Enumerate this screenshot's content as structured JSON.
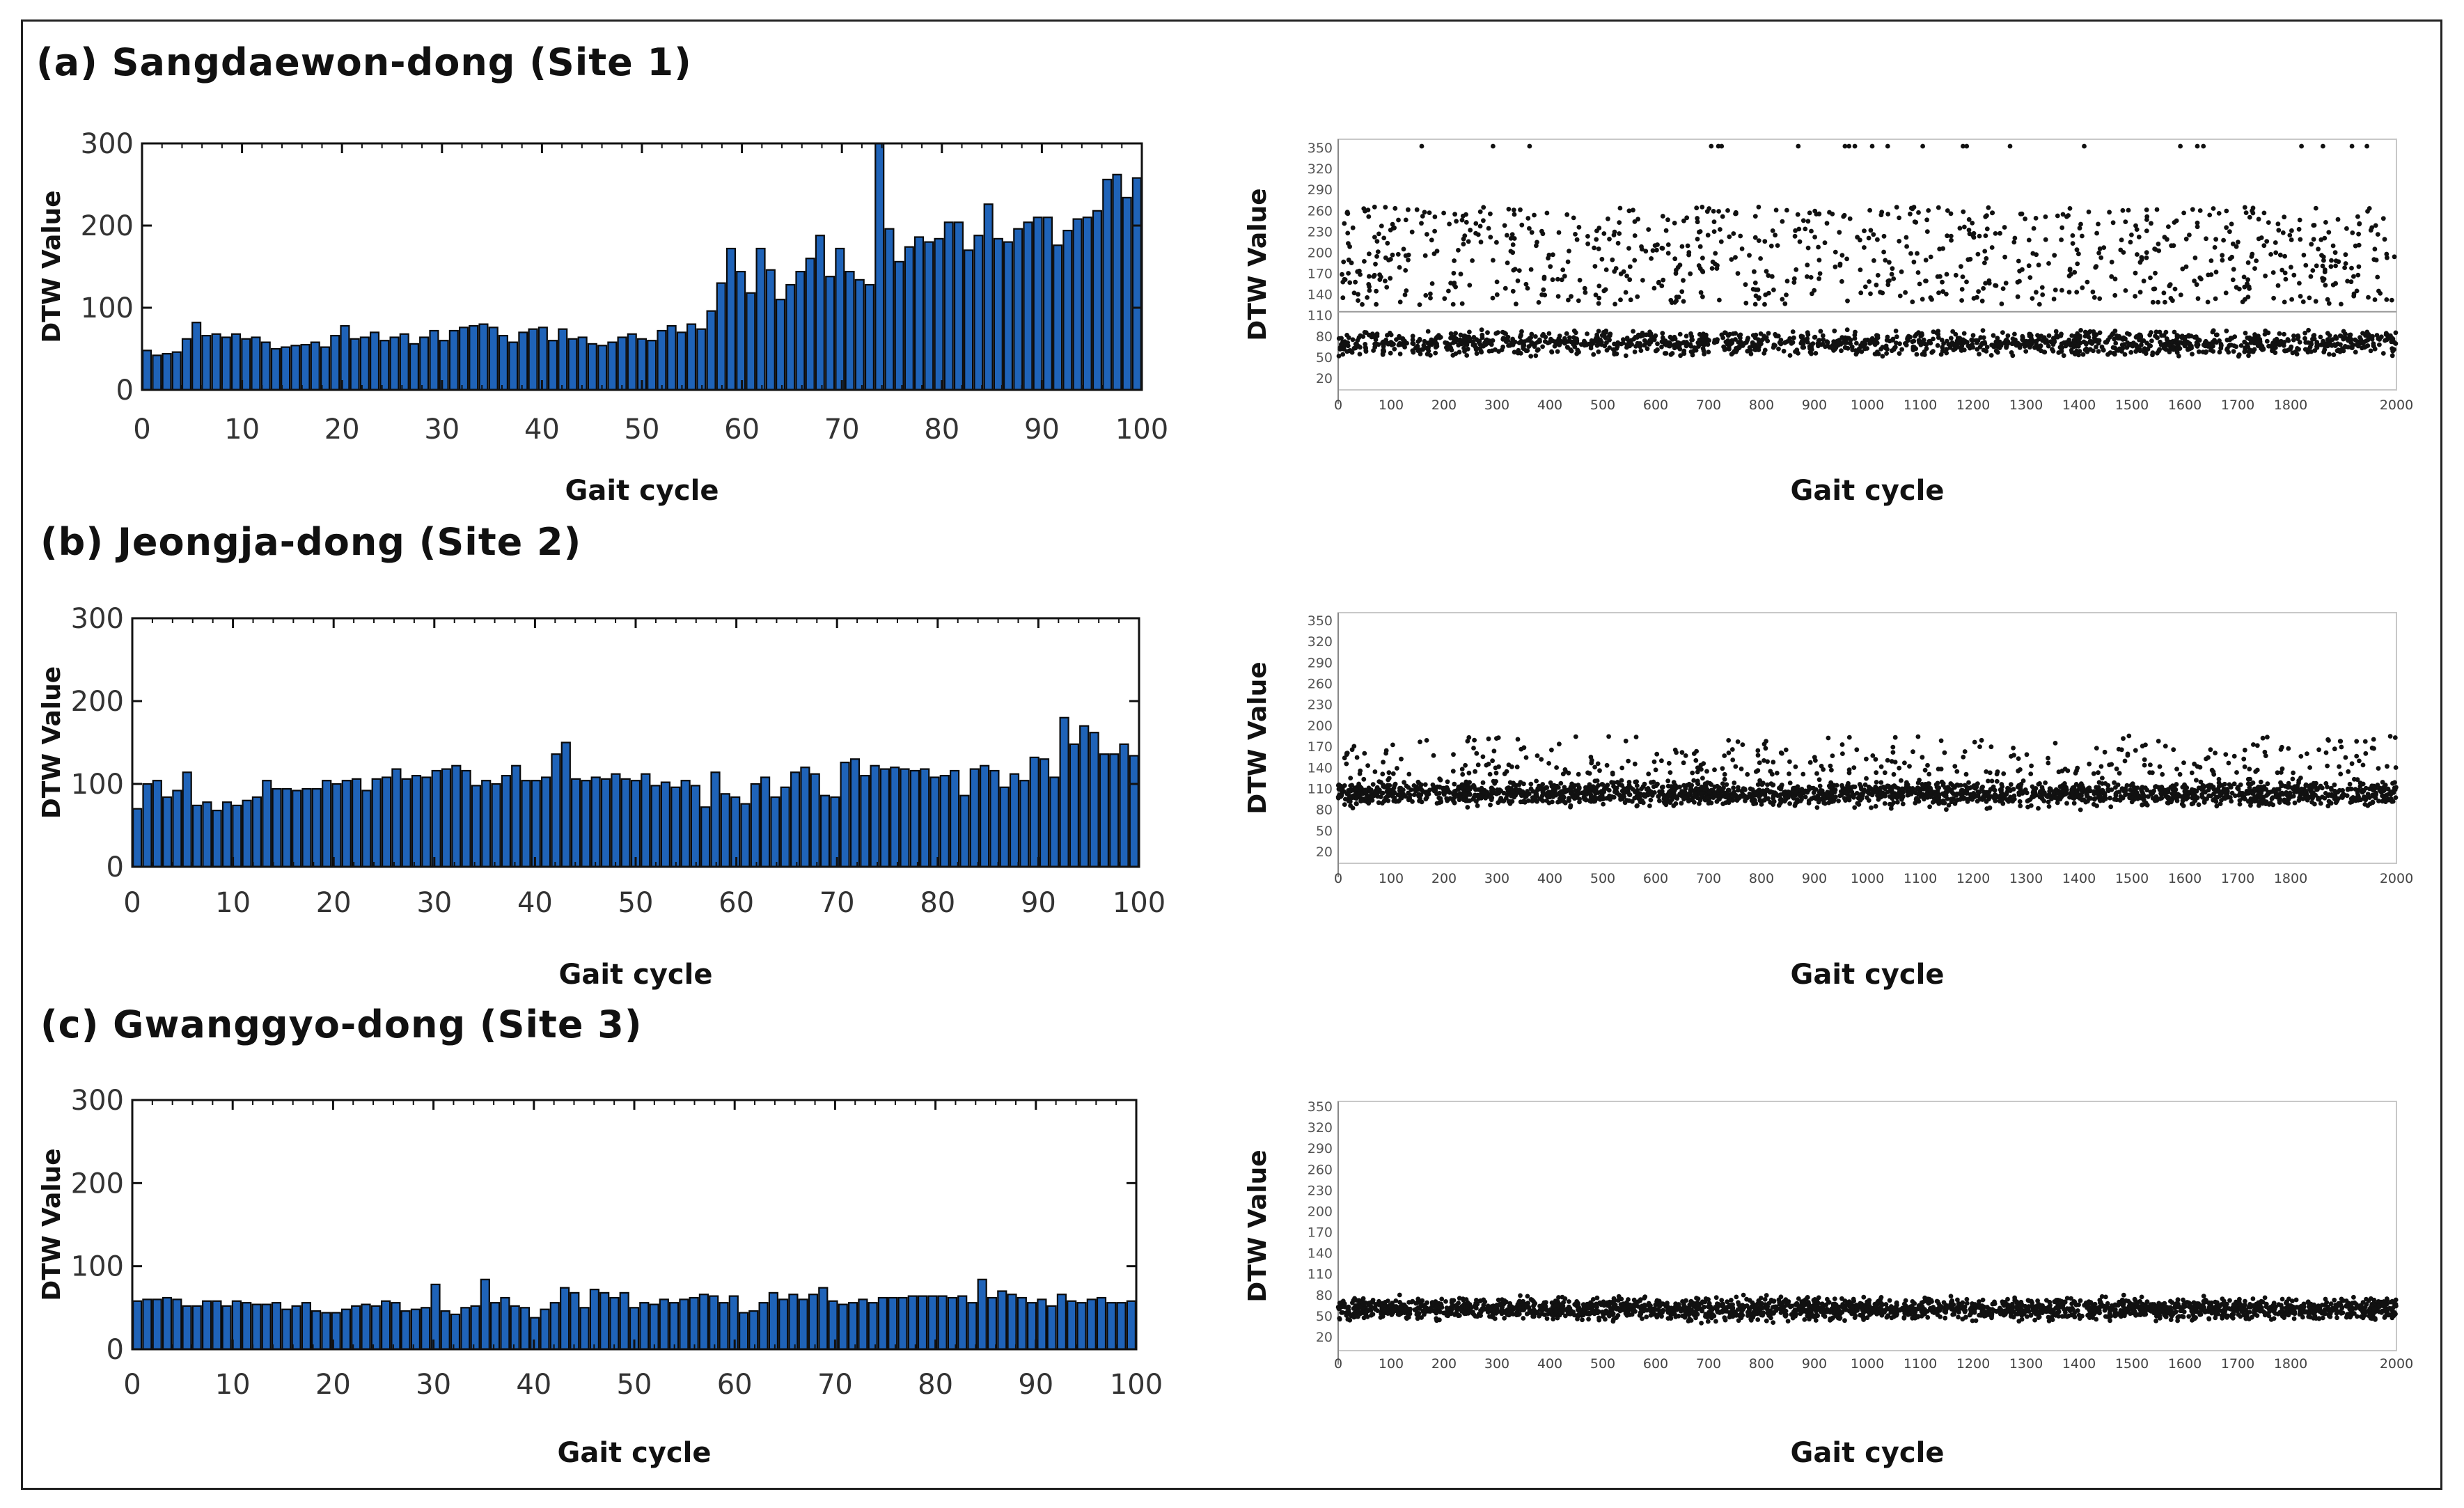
{
  "panels": [
    {
      "heading": "(a) Sangdaewon-dong (Site 1)",
      "bar_chart": {
        "type": "bar",
        "xlabel": "Gait cycle",
        "ylabel": "DTW Value",
        "xlim": [
          0,
          100
        ],
        "ylim": [
          0,
          300
        ],
        "xticks": [
          "0",
          "10",
          "20",
          "30",
          "40",
          "50",
          "60",
          "70",
          "80",
          "90",
          "100"
        ],
        "yticks": [
          "0",
          "100",
          "200",
          "300"
        ],
        "bar_color": "#1f63b8",
        "values": [
          48,
          42,
          44,
          46,
          62,
          82,
          66,
          68,
          64,
          68,
          62,
          64,
          58,
          50,
          52,
          54,
          55,
          58,
          52,
          66,
          78,
          62,
          64,
          70,
          60,
          64,
          68,
          56,
          64,
          72,
          60,
          72,
          76,
          78,
          80,
          76,
          66,
          58,
          70,
          74,
          76,
          60,
          74,
          62,
          64,
          56,
          54,
          58,
          64,
          68,
          62,
          60,
          72,
          78,
          70,
          80,
          74,
          96,
          130,
          172,
          144,
          118,
          172,
          146,
          110,
          128,
          144,
          160,
          188,
          138,
          172,
          144,
          134,
          128,
          300,
          196,
          156,
          174,
          186,
          180,
          184,
          204,
          204,
          170,
          188,
          226,
          184,
          180,
          196,
          204,
          210,
          210,
          176,
          194,
          208,
          210,
          218,
          256,
          262,
          234,
          258
        ]
      },
      "scatter": {
        "type": "scatter",
        "xlabel": "Gait cycle",
        "ylabel": "DTW Value",
        "xlim": [
          0,
          2000
        ],
        "ylim": [
          0,
          355
        ],
        "xticks": [
          "0",
          "100",
          "200",
          "300",
          "400",
          "500",
          "600",
          "700",
          "800",
          "900",
          "1000",
          "1100",
          "1200",
          "1300",
          "1400",
          "1500",
          "1600",
          "1700",
          "1800",
          "2000"
        ],
        "yticks": [
          "20",
          "50",
          "80",
          "110",
          "140",
          "170",
          "200",
          "230",
          "260",
          "290",
          "320",
          "350"
        ],
        "threshold": 115,
        "low_band": [
          50,
          90
        ],
        "high_band": [
          125,
          265
        ],
        "outlier_level": 352
      }
    },
    {
      "heading": "(b) Jeongja-dong (Site 2)",
      "bar_chart": {
        "type": "bar",
        "xlabel": "Gait cycle",
        "ylabel": "DTW Value",
        "xlim": [
          0,
          100
        ],
        "ylim": [
          0,
          300
        ],
        "xticks": [
          "0",
          "10",
          "20",
          "30",
          "40",
          "50",
          "60",
          "70",
          "80",
          "90",
          "100"
        ],
        "yticks": [
          "0",
          "100",
          "200",
          "300"
        ],
        "bar_color": "#1f63b8",
        "values": [
          70,
          100,
          104,
          84,
          92,
          114,
          74,
          78,
          68,
          78,
          74,
          80,
          84,
          104,
          94,
          94,
          92,
          94,
          94,
          104,
          100,
          104,
          106,
          92,
          106,
          108,
          118,
          106,
          110,
          108,
          116,
          118,
          122,
          116,
          98,
          104,
          100,
          110,
          122,
          104,
          104,
          108,
          136,
          150,
          106,
          104,
          108,
          106,
          112,
          106,
          104,
          112,
          98,
          102,
          96,
          104,
          98,
          72,
          114,
          88,
          84,
          76,
          100,
          108,
          84,
          96,
          114,
          120,
          112,
          86,
          84,
          126,
          130,
          110,
          122,
          118,
          120,
          118,
          116,
          118,
          108,
          110,
          116,
          86,
          118,
          122,
          116,
          96,
          112,
          104,
          132,
          130,
          108,
          180,
          148,
          170,
          162,
          136,
          136,
          148,
          134
        ]
      },
      "scatter": {
        "type": "scatter",
        "xlabel": "Gait cycle",
        "ylabel": "DTW Value",
        "xlim": [
          0,
          2000
        ],
        "ylim": [
          0,
          355
        ],
        "xticks": [
          "0",
          "100",
          "200",
          "300",
          "400",
          "500",
          "600",
          "700",
          "800",
          "900",
          "1000",
          "1100",
          "1200",
          "1300",
          "1400",
          "1500",
          "1600",
          "1700",
          "1800",
          "2000"
        ],
        "yticks": [
          "20",
          "50",
          "80",
          "110",
          "140",
          "170",
          "200",
          "230",
          "260",
          "290",
          "320",
          "350"
        ],
        "main_band": [
          78,
          128
        ],
        "upper_band": [
          130,
          185
        ]
      }
    },
    {
      "heading": "(c) Gwanggyo-dong (Site 3)",
      "bar_chart": {
        "type": "bar",
        "xlabel": "Gait cycle",
        "ylabel": "DTW Value",
        "xlim": [
          0,
          100
        ],
        "ylim": [
          0,
          300
        ],
        "xticks": [
          "0",
          "10",
          "20",
          "30",
          "40",
          "50",
          "60",
          "70",
          "80",
          "90",
          "100"
        ],
        "yticks": [
          "0",
          "100",
          "200",
          "300"
        ],
        "bar_color": "#1f63b8",
        "values": [
          58,
          60,
          60,
          62,
          60,
          52,
          52,
          58,
          58,
          52,
          58,
          56,
          54,
          54,
          56,
          48,
          52,
          56,
          46,
          44,
          44,
          48,
          52,
          54,
          52,
          58,
          56,
          46,
          48,
          50,
          78,
          46,
          42,
          50,
          52,
          84,
          56,
          62,
          52,
          50,
          38,
          48,
          56,
          74,
          68,
          50,
          72,
          68,
          62,
          68,
          50,
          56,
          54,
          60,
          56,
          60,
          62,
          66,
          64,
          56,
          64,
          44,
          46,
          56,
          68,
          60,
          66,
          60,
          66,
          74,
          58,
          54,
          56,
          60,
          56,
          62,
          62,
          62,
          64,
          64,
          64,
          64,
          62,
          64,
          56,
          84,
          62,
          70,
          66,
          62,
          56,
          60,
          52,
          66,
          58,
          56,
          60,
          62,
          56,
          56,
          58
        ]
      },
      "scatter": {
        "type": "scatter",
        "xlabel": "Gait cycle",
        "ylabel": "DTW Value",
        "xlim": [
          0,
          2000
        ],
        "ylim": [
          0,
          355
        ],
        "xticks": [
          "0",
          "100",
          "200",
          "300",
          "400",
          "500",
          "600",
          "700",
          "800",
          "900",
          "1000",
          "1100",
          "1200",
          "1300",
          "1400",
          "1500",
          "1600",
          "1700",
          "1800",
          "2000"
        ],
        "yticks": [
          "20",
          "50",
          "80",
          "110",
          "140",
          "170",
          "200",
          "230",
          "260",
          "290",
          "320",
          "350"
        ],
        "main_band": [
          38,
          82
        ]
      }
    }
  ]
}
